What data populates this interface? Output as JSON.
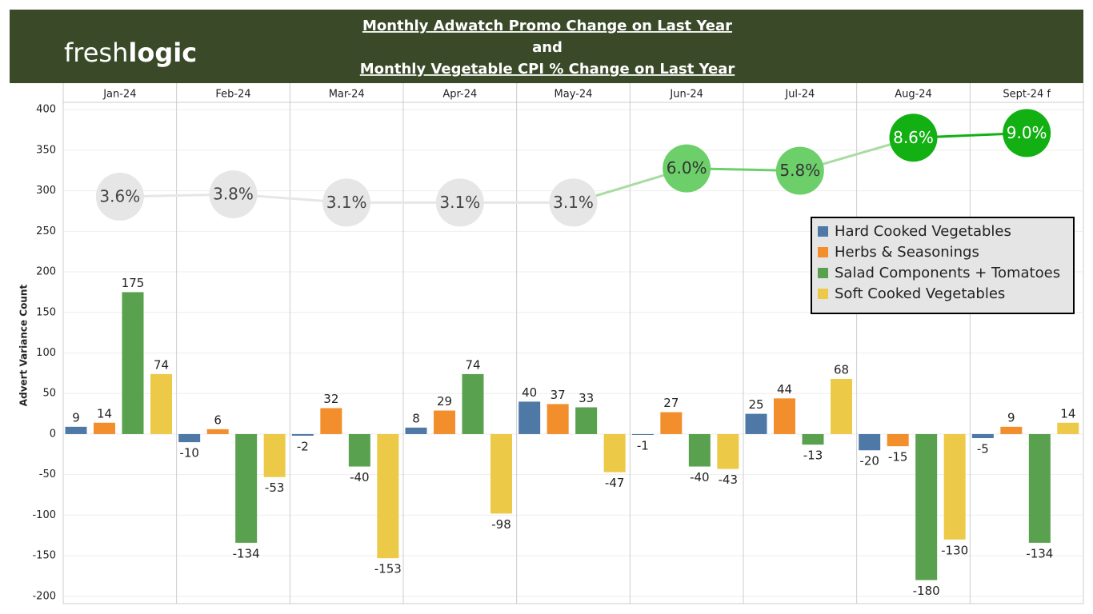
{
  "chart_data": {
    "type": "bar",
    "logo": [
      "fresh",
      "logic"
    ],
    "title": [
      "Monthly Adwatch Promo Change on Last Year",
      "and",
      "Monthly Vegetable CPI % Change on Last Year"
    ],
    "y_label": "Advert Variance Count",
    "categories": [
      "Jan-24",
      "Feb-24",
      "Mar-24",
      "Apr-24",
      "May-24",
      "Jun-24",
      "Jul-24",
      "Aug-24",
      "Sept-24 f"
    ],
    "ylim": [
      -209,
      409
    ],
    "yticks": [
      -200,
      -150,
      -100,
      -50,
      0,
      50,
      100,
      150,
      200,
      250,
      300,
      350,
      400
    ],
    "y2lim": [
      -30.9,
      11.6
    ],
    "grid": true,
    "legend": "right",
    "series": [
      {
        "name": "Hard Cooked Vegetables",
        "color": "#4e79a7",
        "values": [
          9,
          -10,
          -2,
          8,
          40,
          -1,
          25,
          -20,
          -5
        ]
      },
      {
        "name": "Herbs & Seasonings",
        "color": "#f28e2b",
        "values": [
          14,
          6,
          32,
          29,
          37,
          27,
          44,
          -15,
          9
        ]
      },
      {
        "name": "Salad Components + Tomatoes",
        "color": "#59a14f",
        "values": [
          175,
          -134,
          -40,
          74,
          33,
          -40,
          -13,
          -180,
          -134
        ]
      },
      {
        "name": "Soft Cooked Vegetables",
        "color": "#edc948",
        "values": [
          74,
          -53,
          -153,
          -98,
          -47,
          -43,
          68,
          -130,
          14
        ]
      },
      {
        "type": "line",
        "axis": "y2",
        "values": [
          3.6,
          3.8,
          3.1,
          3.1,
          3.1,
          6.0,
          5.8,
          8.6,
          9.0
        ],
        "value_labels": [
          "3.6%",
          "3.8%",
          "3.1%",
          "3.1%",
          "3.1%",
          "6.0%",
          "5.8%",
          "8.6%",
          "9.0%"
        ],
        "point_colors": [
          "#e6e6e6",
          "#e6e6e6",
          "#e6e6e6",
          "#e6e6e6",
          "#e6e6e6",
          "#6ccf6a",
          "#6ccf6a",
          "#12b012",
          "#12b012"
        ],
        "label_colors": [
          "#444444",
          "#444444",
          "#444444",
          "#444444",
          "#444444",
          "#333333",
          "#333333",
          "#ffffff",
          "#ffffff"
        ]
      }
    ]
  }
}
